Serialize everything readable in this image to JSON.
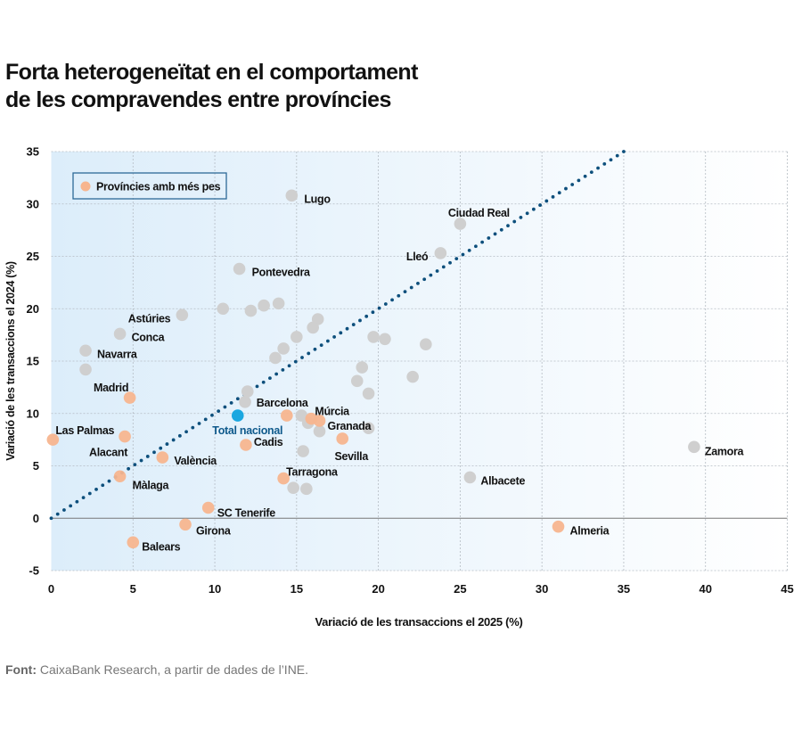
{
  "title_lines": [
    "Forta heterogeneïtat en el comportament",
    "de les compravendes entre províncies"
  ],
  "source": {
    "label": "Font:",
    "text": " CaixaBank Research, a partir de dades de l’INE."
  },
  "colors": {
    "highlight": "#f7b58f",
    "other": "#cfcfcf",
    "total": "#1aa7e0",
    "diagonal": "#0d4f7c",
    "total_label": "#0f5a8c",
    "background_left": "#dcedfa"
  },
  "chart_data": {
    "type": "scatter",
    "title": "Forta heterogeneïtat en el comportament de les compravendes entre províncies",
    "xlabel": "Variació de les transaccions el 2025 (%)",
    "ylabel": "Variació de les transaccions el 2024 (%)",
    "xlim": [
      0,
      45
    ],
    "ylim": [
      -5,
      35
    ],
    "xticks": [
      "0",
      "5",
      "10",
      "15",
      "20",
      "25",
      "30",
      "35",
      "40",
      "45"
    ],
    "yticks": [
      "-5",
      "0",
      "5",
      "10",
      "15",
      "20",
      "25",
      "30",
      "35"
    ],
    "grid": true,
    "legend": {
      "position": "top-left",
      "entries": [
        "Províncies amb més pes"
      ]
    },
    "reference_line": {
      "type": "y=x",
      "from": 0,
      "to": 35,
      "style": "dotted"
    },
    "points": [
      {
        "label": "Lugo",
        "x": 14.7,
        "y": 30.8,
        "group": "other"
      },
      {
        "label": "Ciudad Real",
        "x": 25.0,
        "y": 28.1,
        "group": "other"
      },
      {
        "label": "Lleó",
        "x": 23.8,
        "y": 25.3,
        "group": "other"
      },
      {
        "label": "Pontevedra",
        "x": 11.5,
        "y": 23.8,
        "group": "other"
      },
      {
        "label": "Astúries",
        "x": 8.0,
        "y": 19.4,
        "group": "other"
      },
      {
        "label": "Conca",
        "x": 4.2,
        "y": 17.6,
        "group": "other"
      },
      {
        "label": "Navarra",
        "x": 2.1,
        "y": 16.0,
        "group": "other"
      },
      {
        "label": "",
        "x": 2.1,
        "y": 14.2,
        "group": "other"
      },
      {
        "label": "",
        "x": 10.5,
        "y": 20.0,
        "group": "other"
      },
      {
        "label": "",
        "x": 12.2,
        "y": 19.8,
        "group": "other"
      },
      {
        "label": "",
        "x": 13.0,
        "y": 20.3,
        "group": "other"
      },
      {
        "label": "",
        "x": 13.9,
        "y": 20.5,
        "group": "other"
      },
      {
        "label": "",
        "x": 16.3,
        "y": 19.0,
        "group": "other"
      },
      {
        "label": "",
        "x": 16.0,
        "y": 18.2,
        "group": "other"
      },
      {
        "label": "",
        "x": 15.0,
        "y": 17.3,
        "group": "other"
      },
      {
        "label": "",
        "x": 14.2,
        "y": 16.2,
        "group": "other"
      },
      {
        "label": "",
        "x": 13.7,
        "y": 15.3,
        "group": "other"
      },
      {
        "label": "",
        "x": 19.7,
        "y": 17.3,
        "group": "other"
      },
      {
        "label": "",
        "x": 20.4,
        "y": 17.1,
        "group": "other"
      },
      {
        "label": "",
        "x": 22.9,
        "y": 16.6,
        "group": "other"
      },
      {
        "label": "",
        "x": 19.0,
        "y": 14.4,
        "group": "other"
      },
      {
        "label": "",
        "x": 18.7,
        "y": 13.1,
        "group": "other"
      },
      {
        "label": "",
        "x": 19.4,
        "y": 11.9,
        "group": "other"
      },
      {
        "label": "",
        "x": 22.1,
        "y": 13.5,
        "group": "other"
      },
      {
        "label": "Barcelona",
        "x": 12.0,
        "y": 12.1,
        "group": "other"
      },
      {
        "label": "",
        "x": 11.85,
        "y": 11.1,
        "group": "other"
      },
      {
        "label": "",
        "x": 15.3,
        "y": 9.8,
        "group": "other"
      },
      {
        "label": "",
        "x": 15.7,
        "y": 9.1,
        "group": "other"
      },
      {
        "label": "",
        "x": 16.4,
        "y": 8.3,
        "group": "other"
      },
      {
        "label": "",
        "x": 19.4,
        "y": 8.6,
        "group": "other"
      },
      {
        "label": "",
        "x": 15.4,
        "y": 6.4,
        "group": "other"
      },
      {
        "label": "",
        "x": 14.8,
        "y": 2.9,
        "group": "other"
      },
      {
        "label": "",
        "x": 15.6,
        "y": 2.8,
        "group": "other"
      },
      {
        "label": "Albacete",
        "x": 25.6,
        "y": 3.9,
        "group": "other"
      },
      {
        "label": "Zamora",
        "x": 39.3,
        "y": 6.8,
        "group": "other"
      },
      {
        "label": "Madrid",
        "x": 4.8,
        "y": 11.5,
        "group": "highlight"
      },
      {
        "label": "Las Palmas",
        "x": 0.1,
        "y": 7.5,
        "group": "highlight"
      },
      {
        "label": "Alacant",
        "x": 4.5,
        "y": 7.8,
        "group": "highlight"
      },
      {
        "label": "València",
        "x": 6.8,
        "y": 5.8,
        "group": "highlight"
      },
      {
        "label": "Màlaga",
        "x": 4.2,
        "y": 4.0,
        "group": "highlight"
      },
      {
        "label": "Cadis",
        "x": 11.9,
        "y": 7.0,
        "group": "highlight"
      },
      {
        "label": "",
        "x": 14.4,
        "y": 9.8,
        "group": "highlight"
      },
      {
        "label": "Múrcia",
        "x": 15.9,
        "y": 9.5,
        "group": "highlight"
      },
      {
        "label": "Granada",
        "x": 16.4,
        "y": 9.3,
        "group": "highlight"
      },
      {
        "label": "Sevilla",
        "x": 17.8,
        "y": 7.6,
        "group": "highlight"
      },
      {
        "label": "Tarragona",
        "x": 14.2,
        "y": 3.8,
        "group": "highlight"
      },
      {
        "label": "SC Tenerife",
        "x": 9.6,
        "y": 1.0,
        "group": "highlight"
      },
      {
        "label": "Girona",
        "x": 8.2,
        "y": -0.6,
        "group": "highlight"
      },
      {
        "label": "Balears",
        "x": 5.0,
        "y": -2.3,
        "group": "highlight"
      },
      {
        "label": "Almeria",
        "x": 31.0,
        "y": -0.8,
        "group": "highlight"
      },
      {
        "label": "Total nacional",
        "x": 11.4,
        "y": 9.8,
        "group": "total"
      }
    ]
  }
}
